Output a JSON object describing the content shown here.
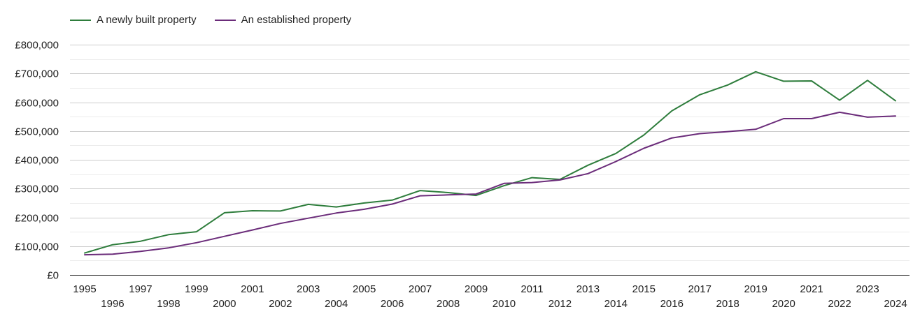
{
  "chart_data": {
    "type": "line",
    "title": "",
    "xlabel": "",
    "ylabel": "",
    "x": [
      "1995",
      "1996",
      "1997",
      "1998",
      "1999",
      "2000",
      "2001",
      "2002",
      "2003",
      "2004",
      "2005",
      "2006",
      "2007",
      "2008",
      "2009",
      "2010",
      "2011",
      "2012",
      "2013",
      "2014",
      "2015",
      "2016",
      "2017",
      "2018",
      "2019",
      "2020",
      "2021",
      "2022",
      "2023",
      "2024"
    ],
    "ylim": [
      0,
      800000
    ],
    "y_ticks": [
      {
        "value": 0,
        "label": "£0"
      },
      {
        "value": 100000,
        "label": "£100,000"
      },
      {
        "value": 200000,
        "label": "£200,000"
      },
      {
        "value": 300000,
        "label": "£300,000"
      },
      {
        "value": 400000,
        "label": "£400,000"
      },
      {
        "value": 500000,
        "label": "£500,000"
      },
      {
        "value": 600000,
        "label": "£600,000"
      },
      {
        "value": 700000,
        "label": "£700,000"
      },
      {
        "value": 800000,
        "label": "£800,000"
      }
    ],
    "grid": true,
    "legend_position": "top-left",
    "series": [
      {
        "name": "A newly built property",
        "color": "#2e7d3c",
        "values": [
          76000,
          105000,
          117000,
          140000,
          150000,
          216000,
          223000,
          222000,
          245000,
          236000,
          250000,
          260000,
          293000,
          286000,
          276000,
          310000,
          338000,
          332000,
          381000,
          422000,
          486000,
          570000,
          626000,
          660000,
          706000,
          673000,
          674000,
          607000,
          676000,
          605000
        ]
      },
      {
        "name": "An established property",
        "color": "#6b2c7a",
        "values": [
          70000,
          72000,
          82000,
          94000,
          112000,
          134000,
          156000,
          179000,
          197000,
          215000,
          228000,
          246000,
          275000,
          278000,
          281000,
          318000,
          321000,
          330000,
          352000,
          394000,
          440000,
          476000,
          491000,
          498000,
          506000,
          543000,
          543000,
          565000,
          548000,
          552000
        ]
      }
    ]
  }
}
